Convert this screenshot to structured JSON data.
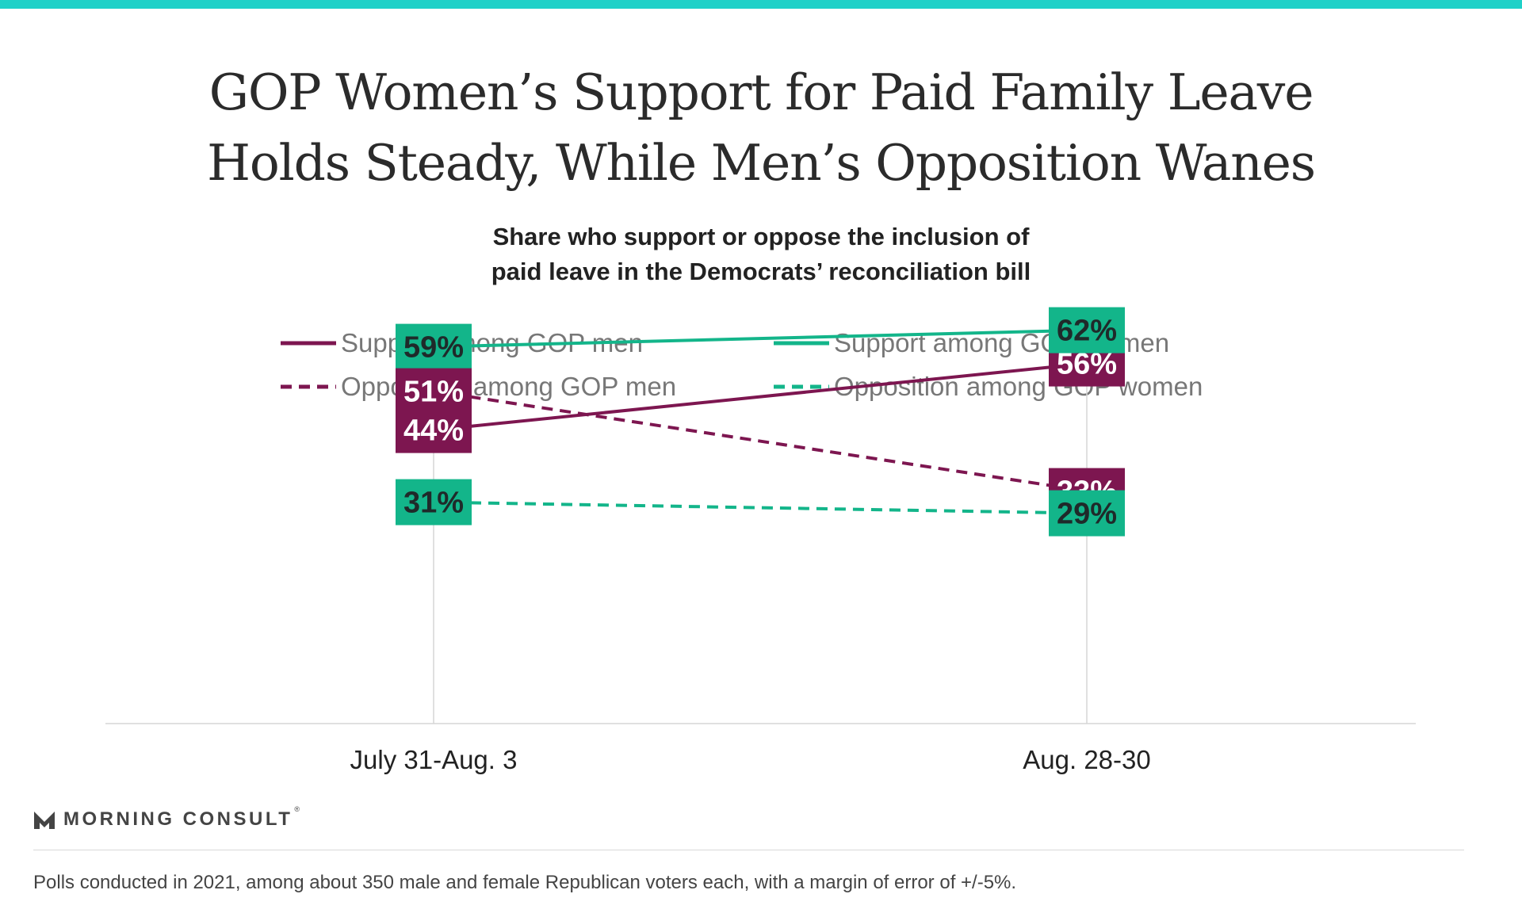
{
  "title_lines": [
    "GOP Women’s Support for Paid Family Leave",
    "Holds Steady, While Men’s Opposition Wanes"
  ],
  "subtitle_lines": [
    "Share who support or oppose the inclusion of",
    "paid leave in the Democrats’ reconciliation bill"
  ],
  "colors": {
    "men": "#7d1650",
    "women": "#13b58a",
    "accent_bar": "#1fd1c8",
    "men_label_text": "#ffffff",
    "women_label_text": "#1f2a2a"
  },
  "chart_data": {
    "type": "line",
    "categories": [
      "July 31-Aug. 3",
      "Aug.  28-30"
    ],
    "series": [
      {
        "name": "Support among GOP men",
        "values": [
          44,
          56
        ],
        "group": "men",
        "dashed": false,
        "labels": [
          "44%",
          "56%"
        ]
      },
      {
        "name": "Support among GOP women",
        "values": [
          59,
          62
        ],
        "group": "women",
        "dashed": false,
        "labels": [
          "59%",
          "62%"
        ]
      },
      {
        "name": "Opposition among GOP men",
        "values": [
          51,
          33
        ],
        "group": "men",
        "dashed": true,
        "labels": [
          "51%",
          "33%"
        ]
      },
      {
        "name": "Opposition among GOP women",
        "values": [
          31,
          29
        ],
        "group": "women",
        "dashed": true,
        "labels": [
          "31%",
          "29%"
        ]
      }
    ],
    "xlabel": "",
    "ylabel": "",
    "legend_position": "top",
    "grid": false
  },
  "logo": {
    "text": "MORNING CONSULT",
    "mark": "®",
    "icon": "morning-consult-logo-icon"
  },
  "footnote": "Polls conducted in 2021, among about 350 male and female Republican voters each, with a margin of error of +/-5%."
}
